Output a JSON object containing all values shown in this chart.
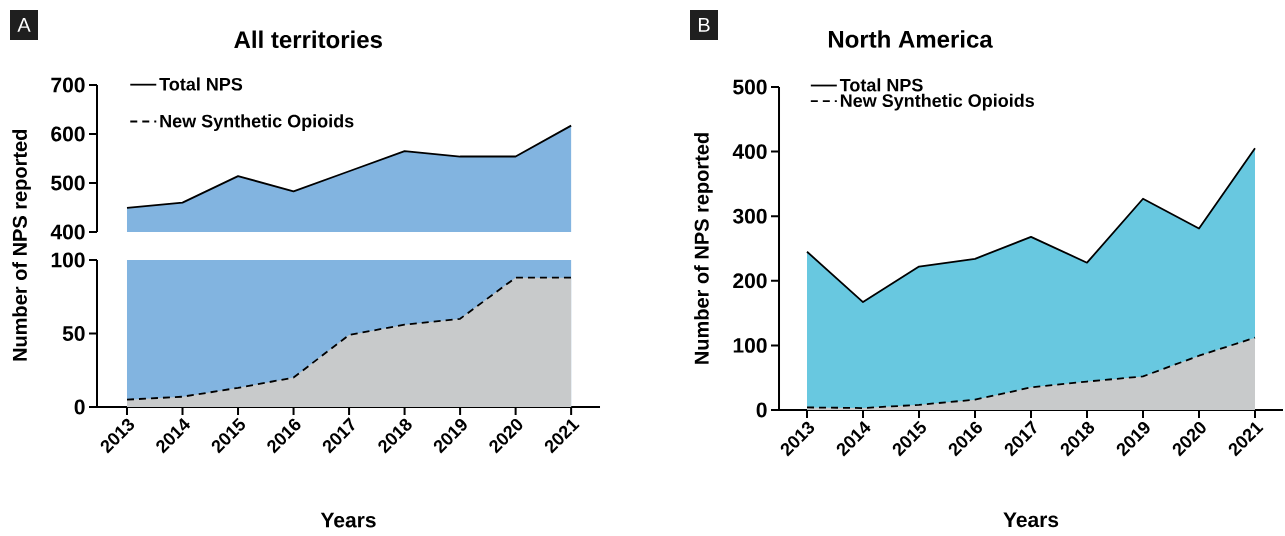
{
  "chart_data": [
    {
      "type": "area",
      "title": "All territories",
      "annotations": [
        "A"
      ],
      "categories": [
        "2013",
        "2014",
        "2015",
        "2016",
        "2017",
        "2018",
        "2019",
        "2020",
        "2021"
      ],
      "series": [
        {
          "name": "Total NPS",
          "color": "#82b4e0",
          "line_style": "solid",
          "values": [
            449,
            460,
            514,
            483,
            524,
            565,
            554,
            554,
            617
          ]
        }
      ],
      "ylim": [
        400,
        700
      ],
      "yticks": [
        400,
        500,
        600,
        700
      ],
      "legend": "top left",
      "tick_labels": "y"
    },
    {
      "type": "area",
      "xlabel": "Years",
      "ylabel": "Number of NPS reported",
      "categories": [
        "2013",
        "2014",
        "2015",
        "2016",
        "2017",
        "2018",
        "2019",
        "2020",
        "2021"
      ],
      "series": [
        {
          "name": "New Synthetic Opioids",
          "color": "#c8cacb",
          "line_style": "dashed",
          "values": [
            5,
            7,
            13,
            20,
            49,
            56,
            60,
            88,
            88
          ]
        }
      ],
      "bands": [
        {
          "axis": "y",
          "from": 0,
          "to": 100,
          "color": "#82b4e0"
        }
      ],
      "ylim": [
        0,
        100
      ],
      "yticks": [
        0,
        50,
        100
      ],
      "legend": "top left"
    },
    {
      "type": "area",
      "title": "North America",
      "annotations": [
        "B"
      ],
      "xlabel": "Years",
      "ylabel": "Number of NPS reported",
      "categories": [
        "2013",
        "2014",
        "2015",
        "2016",
        "2017",
        "2018",
        "2019",
        "2020",
        "2021"
      ],
      "series": [
        {
          "name": "Total NPS",
          "color": "#68c8e0",
          "line_style": "solid",
          "values": [
            245,
            167,
            222,
            234,
            268,
            228,
            327,
            281,
            405
          ]
        },
        {
          "name": "New Synthetic Opioids",
          "color": "#c8cacb",
          "line_style": "dashed",
          "values": [
            4,
            3,
            8,
            16,
            35,
            44,
            52,
            84,
            112
          ]
        }
      ],
      "ylim": [
        0,
        500
      ],
      "yticks": [
        0,
        100,
        200,
        300,
        400,
        500
      ],
      "legend": "top left"
    }
  ]
}
